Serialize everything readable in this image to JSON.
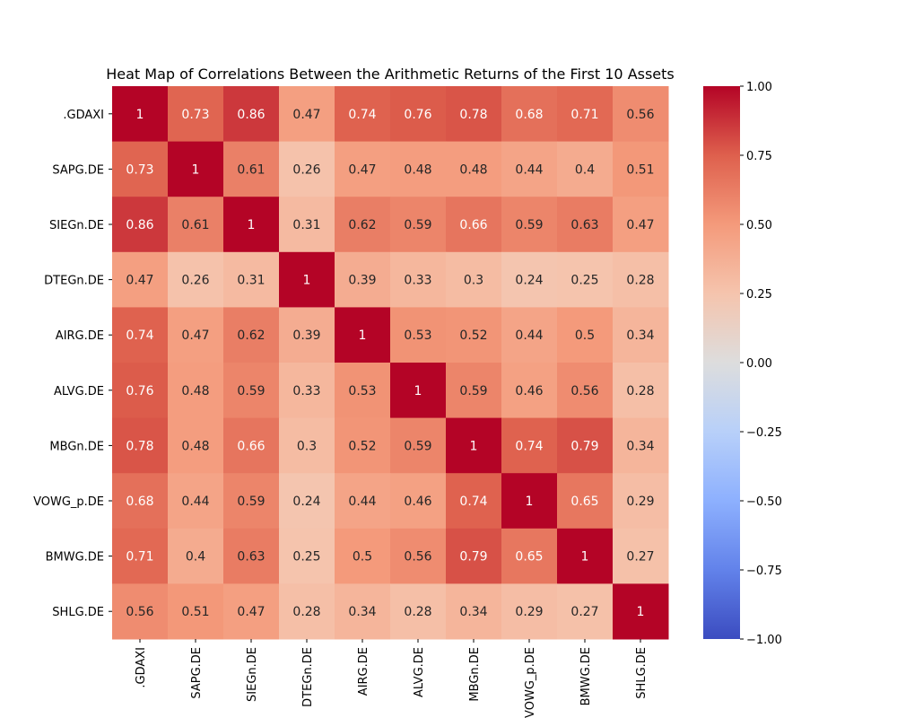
{
  "chart_data": {
    "type": "heatmap",
    "title": "Heat Map of Correlations Between the Arithmetic Returns of the First 10 Assets",
    "row_labels": [
      ".GDAXI",
      "SAPG.DE",
      "SIEGn.DE",
      "DTEGn.DE",
      "AIRG.DE",
      "ALVG.DE",
      "MBGn.DE",
      "VOWG_p.DE",
      "BMWG.DE",
      "SHLG.DE"
    ],
    "col_labels": [
      ".GDAXI",
      "SAPG.DE",
      "SIEGn.DE",
      "DTEGn.DE",
      "AIRG.DE",
      "ALVG.DE",
      "MBGn.DE",
      "VOWG_p.DE",
      "BMWG.DE",
      "SHLG.DE"
    ],
    "values": [
      [
        1,
        0.73,
        0.86,
        0.47,
        0.74,
        0.76,
        0.78,
        0.68,
        0.71,
        0.56
      ],
      [
        0.73,
        1,
        0.61,
        0.26,
        0.47,
        0.48,
        0.48,
        0.44,
        0.4,
        0.51
      ],
      [
        0.86,
        0.61,
        1,
        0.31,
        0.62,
        0.59,
        0.66,
        0.59,
        0.63,
        0.47
      ],
      [
        0.47,
        0.26,
        0.31,
        1,
        0.39,
        0.33,
        0.3,
        0.24,
        0.25,
        0.28
      ],
      [
        0.74,
        0.47,
        0.62,
        0.39,
        1,
        0.53,
        0.52,
        0.44,
        0.5,
        0.34
      ],
      [
        0.76,
        0.48,
        0.59,
        0.33,
        0.53,
        1,
        0.59,
        0.46,
        0.56,
        0.28
      ],
      [
        0.78,
        0.48,
        0.66,
        0.3,
        0.52,
        0.59,
        1,
        0.74,
        0.79,
        0.34
      ],
      [
        0.68,
        0.44,
        0.59,
        0.24,
        0.44,
        0.46,
        0.74,
        1,
        0.65,
        0.29
      ],
      [
        0.71,
        0.4,
        0.63,
        0.25,
        0.5,
        0.56,
        0.79,
        0.65,
        1,
        0.27
      ],
      [
        0.56,
        0.51,
        0.47,
        0.28,
        0.34,
        0.28,
        0.34,
        0.29,
        0.27,
        1
      ]
    ],
    "colormap": "coolwarm",
    "vmin": -1.0,
    "vmax": 1.0,
    "colorbar_ticks": [
      "1.00",
      "0.75",
      "0.50",
      "0.25",
      "0.00",
      "−0.25",
      "−0.50",
      "−0.75",
      "−1.00"
    ],
    "colorbar_tick_values": [
      1.0,
      0.75,
      0.5,
      0.25,
      0.0,
      -0.25,
      -0.5,
      -0.75,
      -1.0
    ],
    "annotations": true,
    "grid": false
  }
}
